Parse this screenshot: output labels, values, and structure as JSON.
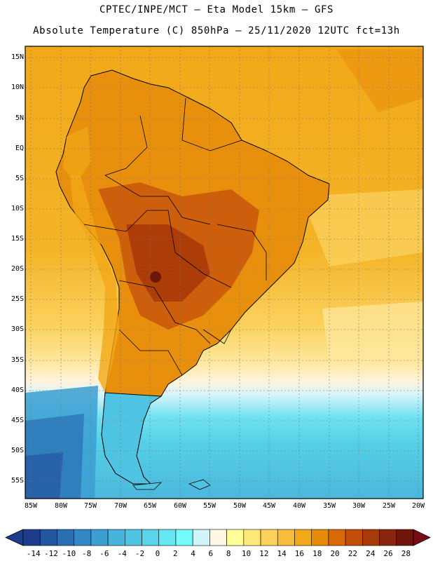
{
  "header": {
    "line1": "CPTEC/INPE/MCT –  Eta Model 15km – GFS",
    "line2": "Absolute Temperature (C) 850hPa – 25/11/2020 12UTC fct=13h"
  },
  "map": {
    "region": "South America",
    "lat_labels": [
      "15N",
      "10N",
      "5N",
      "EQ",
      "5S",
      "10S",
      "15S",
      "20S",
      "25S",
      "30S",
      "35S",
      "40S",
      "45S",
      "50S",
      "55S"
    ],
    "lon_labels": [
      "85W",
      "80W",
      "75W",
      "70W",
      "65W",
      "60W",
      "55W",
      "50W",
      "45W",
      "40W",
      "35W",
      "30W",
      "25W",
      "20W"
    ]
  },
  "colorbar": {
    "labels": [
      "-14",
      "-12",
      "-10",
      "-8",
      "-6",
      "-4",
      "-2",
      "0",
      "2",
      "4",
      "6",
      "8",
      "10",
      "12",
      "14",
      "16",
      "18",
      "20",
      "22",
      "24",
      "26",
      "28"
    ],
    "colors": [
      "#1d3d8c",
      "#2356a0",
      "#2a6eb4",
      "#3387c4",
      "#3b9fd2",
      "#46b4dc",
      "#4fc4e2",
      "#5ad4ea",
      "#66e6f2",
      "#74fafa",
      "#d2f5fa",
      "#fff8e6",
      "#ffff9a",
      "#fde878",
      "#fcd15a",
      "#f7bd3a",
      "#f2a818",
      "#e88a0a",
      "#d86808",
      "#c24e08",
      "#a83a08",
      "#8a2610",
      "#6e1608"
    ]
  }
}
